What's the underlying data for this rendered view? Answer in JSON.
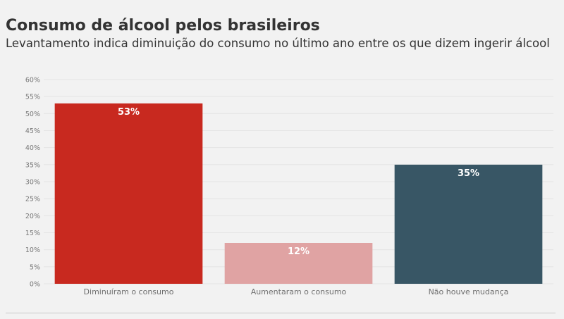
{
  "title": "Consumo de álcool pelos brasileiros",
  "subtitle": "Levantamento indica diminuição do consumo no último ano entre os que dizem ingerir álcool",
  "chart_data": {
    "type": "bar",
    "categories": [
      "Diminuíram o consumo",
      "Aumentaram o consumo",
      "Não houve mudança"
    ],
    "values": [
      53,
      12,
      35
    ],
    "value_labels": [
      "53%",
      "12%",
      "35%"
    ],
    "colors": [
      "#c8291f",
      "#e0a3a3",
      "#385665"
    ],
    "ylim": [
      0,
      60
    ],
    "yticks": [
      0,
      5,
      10,
      15,
      20,
      25,
      30,
      35,
      40,
      45,
      50,
      55,
      60
    ],
    "ytick_labels": [
      "0%",
      "5%",
      "10%",
      "15%",
      "20%",
      "25%",
      "30%",
      "35%",
      "40%",
      "45%",
      "50%",
      "55%",
      "60%"
    ],
    "grid": true,
    "legend": "none"
  }
}
